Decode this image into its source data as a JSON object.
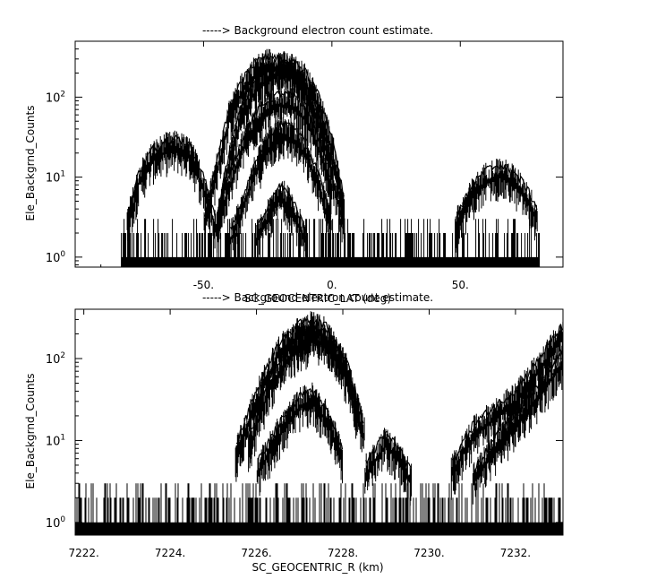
{
  "chart_data": [
    {
      "type": "line",
      "title": "-----> Background electron count estimate.",
      "xlabel": "SC_GEOCENTRIC_LAT (deg)",
      "ylabel": "Ele_Backgrnd_Counts",
      "yscale": "log",
      "xlim": [
        -100,
        90
      ],
      "ylim": [
        0.75,
        500
      ],
      "x_ticks": [
        -50,
        0,
        50
      ],
      "x_tick_labels": [
        "-50.",
        "0.",
        "50."
      ],
      "y_ticks": [
        1,
        10,
        100
      ],
      "y_tick_labels": [
        "10^0",
        "10^1",
        "10^2"
      ],
      "grid": false,
      "legend": "none",
      "color": "#000000",
      "series": [
        {
          "x": [
            -80,
            -75,
            -70,
            -65,
            -60,
            -55,
            -50,
            -45
          ],
          "y": [
            3,
            12,
            22,
            28,
            30,
            24,
            10,
            3
          ]
        },
        {
          "x": [
            -50,
            -45,
            -40,
            -35,
            -30,
            -25,
            -20,
            -15,
            -10,
            -5,
            0,
            5
          ],
          "y": [
            3,
            15,
            70,
            160,
            260,
            320,
            310,
            250,
            150,
            60,
            15,
            3
          ]
        },
        {
          "x": [
            -45,
            -40,
            -35,
            -30,
            -25,
            -20,
            -15,
            -10,
            -5,
            0,
            5
          ],
          "y": [
            3,
            20,
            80,
            160,
            230,
            280,
            270,
            200,
            100,
            30,
            5
          ]
        },
        {
          "x": [
            -45,
            -40,
            -35,
            -30,
            -25,
            -20,
            -15,
            -10,
            -5,
            0
          ],
          "y": [
            3,
            10,
            30,
            60,
            90,
            110,
            100,
            70,
            30,
            8
          ]
        },
        {
          "x": [
            -40,
            -35,
            -30,
            -25,
            -20,
            -15,
            -10,
            -5,
            0
          ],
          "y": [
            2,
            5,
            15,
            30,
            45,
            40,
            25,
            10,
            3
          ]
        },
        {
          "x": [
            -30,
            -25,
            -20,
            -15,
            -10
          ],
          "y": [
            2,
            4,
            8,
            5,
            2
          ]
        },
        {
          "x": [
            48,
            55,
            60,
            65,
            70,
            75,
            80
          ],
          "y": [
            3,
            8,
            12,
            14,
            12,
            8,
            4
          ]
        }
      ]
    },
    {
      "type": "line",
      "title": "-----> Background electron count estimate.",
      "xlabel": "SC_GEOCENTRIC_R (km)",
      "ylabel": "Ele_Backgrnd_Counts",
      "yscale": "log",
      "xlim": [
        7221.8,
        7233.1
      ],
      "ylim": [
        0.7,
        400
      ],
      "x_ticks": [
        7222,
        7224,
        7226,
        7228,
        7230,
        7232
      ],
      "x_tick_labels": [
        "7222.",
        "7224.",
        "7226.",
        "7228.",
        "7230.",
        "7232."
      ],
      "y_ticks": [
        1,
        10,
        100
      ],
      "y_tick_labels": [
        "10^0",
        "10^1",
        "10^2"
      ],
      "grid": false,
      "legend": "none",
      "color": "#000000",
      "series": [
        {
          "x": [
            7225.5,
            7226,
            7226.5,
            7227,
            7227.3,
            7227.6,
            7228,
            7228.4
          ],
          "y": [
            8,
            40,
            150,
            260,
            300,
            250,
            100,
            20
          ]
        },
        {
          "x": [
            7225.8,
            7226.3,
            7226.8,
            7227.3,
            7227.7,
            7228.1,
            7228.5
          ],
          "y": [
            10,
            60,
            150,
            230,
            200,
            90,
            15
          ]
        },
        {
          "x": [
            7226,
            7226.5,
            7227,
            7227.3,
            7227.6,
            7228
          ],
          "y": [
            5,
            15,
            35,
            40,
            25,
            8
          ]
        },
        {
          "x": [
            7228.5,
            7229,
            7229.3,
            7229.6
          ],
          "y": [
            5,
            12,
            8,
            4
          ]
        },
        {
          "x": [
            7230.5,
            7231,
            7231.5,
            7232,
            7232.5,
            7233.1
          ],
          "y": [
            5,
            15,
            25,
            40,
            90,
            250
          ]
        },
        {
          "x": [
            7231,
            7231.5,
            7232,
            7232.5,
            7233.1
          ],
          "y": [
            4,
            10,
            20,
            45,
            120
          ]
        }
      ]
    }
  ]
}
